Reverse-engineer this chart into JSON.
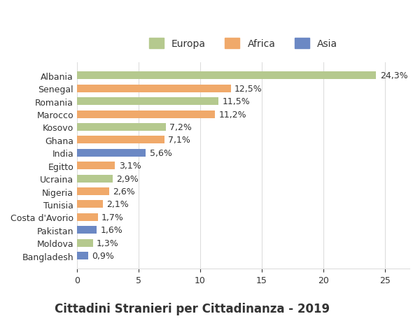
{
  "countries": [
    "Bangladesh",
    "Moldova",
    "Pakistan",
    "Costa d'Avorio",
    "Tunisia",
    "Nigeria",
    "Ucraina",
    "Egitto",
    "India",
    "Ghana",
    "Kosovo",
    "Marocco",
    "Romania",
    "Senegal",
    "Albania"
  ],
  "values": [
    0.9,
    1.3,
    1.6,
    1.7,
    2.1,
    2.6,
    2.9,
    3.1,
    5.6,
    7.1,
    7.2,
    11.2,
    11.5,
    12.5,
    24.3
  ],
  "labels": [
    "0,9%",
    "1,3%",
    "1,6%",
    "1,7%",
    "2,1%",
    "2,6%",
    "2,9%",
    "3,1%",
    "5,6%",
    "7,1%",
    "7,2%",
    "11,2%",
    "11,5%",
    "12,5%",
    "24,3%"
  ],
  "continents": [
    "Asia",
    "Europa",
    "Asia",
    "Africa",
    "Africa",
    "Africa",
    "Europa",
    "Africa",
    "Asia",
    "Africa",
    "Europa",
    "Africa",
    "Europa",
    "Africa",
    "Europa"
  ],
  "color_europa": "#b5c98e",
  "color_africa": "#f0a96a",
  "color_asia": "#6b88c4",
  "legend_labels": [
    "Europa",
    "Africa",
    "Asia"
  ],
  "title": "Cittadini Stranieri per Cittadinanza - 2019",
  "xlabel": "",
  "xlim": [
    0,
    27
  ],
  "xticks": [
    0,
    5,
    10,
    15,
    20,
    25
  ],
  "background_color": "#ffffff",
  "grid_color": "#dddddd",
  "text_color": "#333333",
  "bar_height": 0.6,
  "title_fontsize": 12,
  "subtitle_fontsize": 9,
  "label_fontsize": 9,
  "tick_fontsize": 9,
  "legend_fontsize": 10
}
